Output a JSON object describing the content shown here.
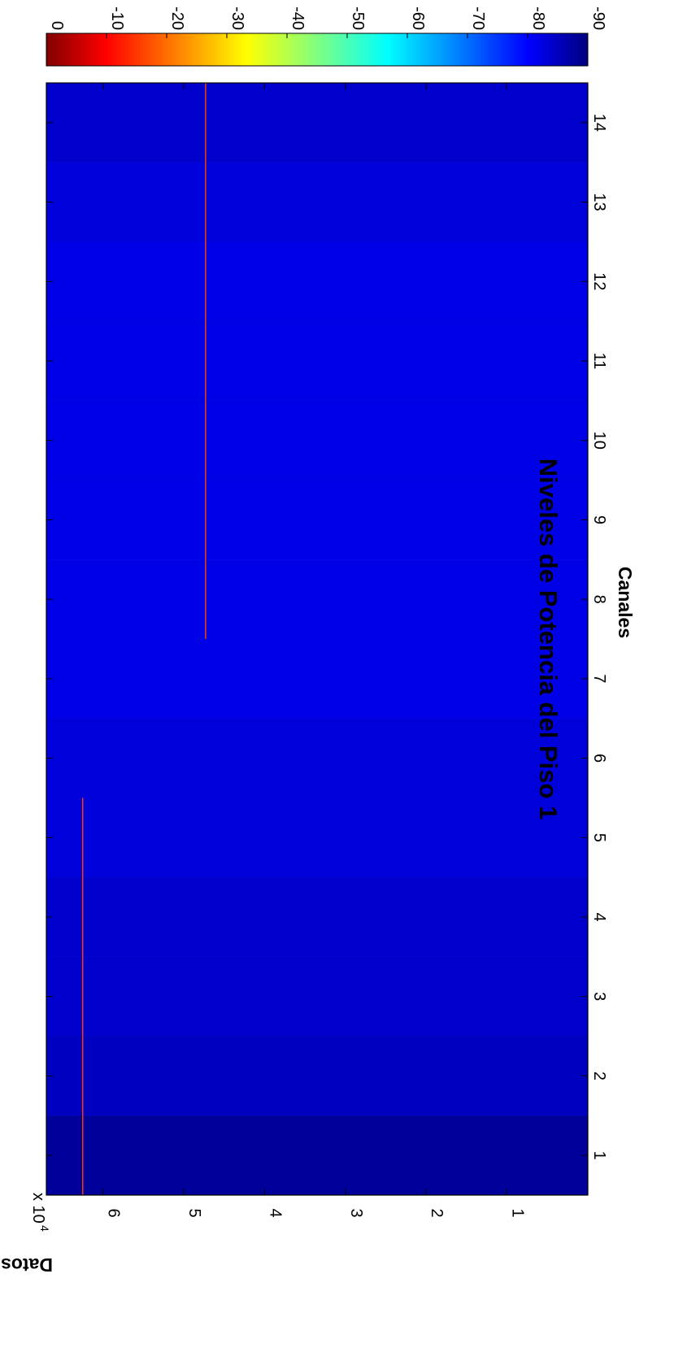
{
  "chart_data": {
    "type": "heatmap",
    "title": "Niveles de Potencia del Piso 1",
    "xlabel": "Canales",
    "ylabel": "Datos",
    "x_categories": [
      "1",
      "2",
      "3",
      "4",
      "5",
      "6",
      "7",
      "8",
      "9",
      "10",
      "11",
      "12",
      "13",
      "14"
    ],
    "y_ticks": [
      "1",
      "2",
      "3",
      "4",
      "5",
      "6"
    ],
    "y_exponent_label": "x 10",
    "y_exponent_power": "4",
    "ylim": [
      0,
      67000
    ],
    "colorbar": {
      "colormap": "jet",
      "ticks": [
        "0",
        "-10",
        "-20",
        "-30",
        "-40",
        "-50",
        "-60",
        "-70",
        "-80",
        "-90"
      ],
      "range": [
        -90,
        0
      ]
    },
    "channel_base_levels": [
      -88,
      -85,
      -84,
      -84,
      -83,
      -83,
      -82,
      -82,
      -82,
      -82,
      -82,
      -82,
      -83,
      -84
    ],
    "highlights": [
      {
        "channel": 1,
        "dato": 62500,
        "level": -15
      },
      {
        "channel": 2,
        "dato": 62500,
        "level": -15
      },
      {
        "channel": 3,
        "dato": 62500,
        "level": -15
      },
      {
        "channel": 4,
        "dato": 62500,
        "level": -15
      },
      {
        "channel": 5,
        "dato": 62500,
        "level": -15
      },
      {
        "channel": 8,
        "dato": 47300,
        "level": -15
      },
      {
        "channel": 9,
        "dato": 47300,
        "level": -15
      },
      {
        "channel": 10,
        "dato": 47300,
        "level": -15
      },
      {
        "channel": 11,
        "dato": 47300,
        "level": -15
      },
      {
        "channel": 12,
        "dato": 47300,
        "level": -15
      },
      {
        "channel": 13,
        "dato": 47300,
        "level": -15
      },
      {
        "channel": 14,
        "dato": 47300,
        "level": -15
      }
    ]
  }
}
